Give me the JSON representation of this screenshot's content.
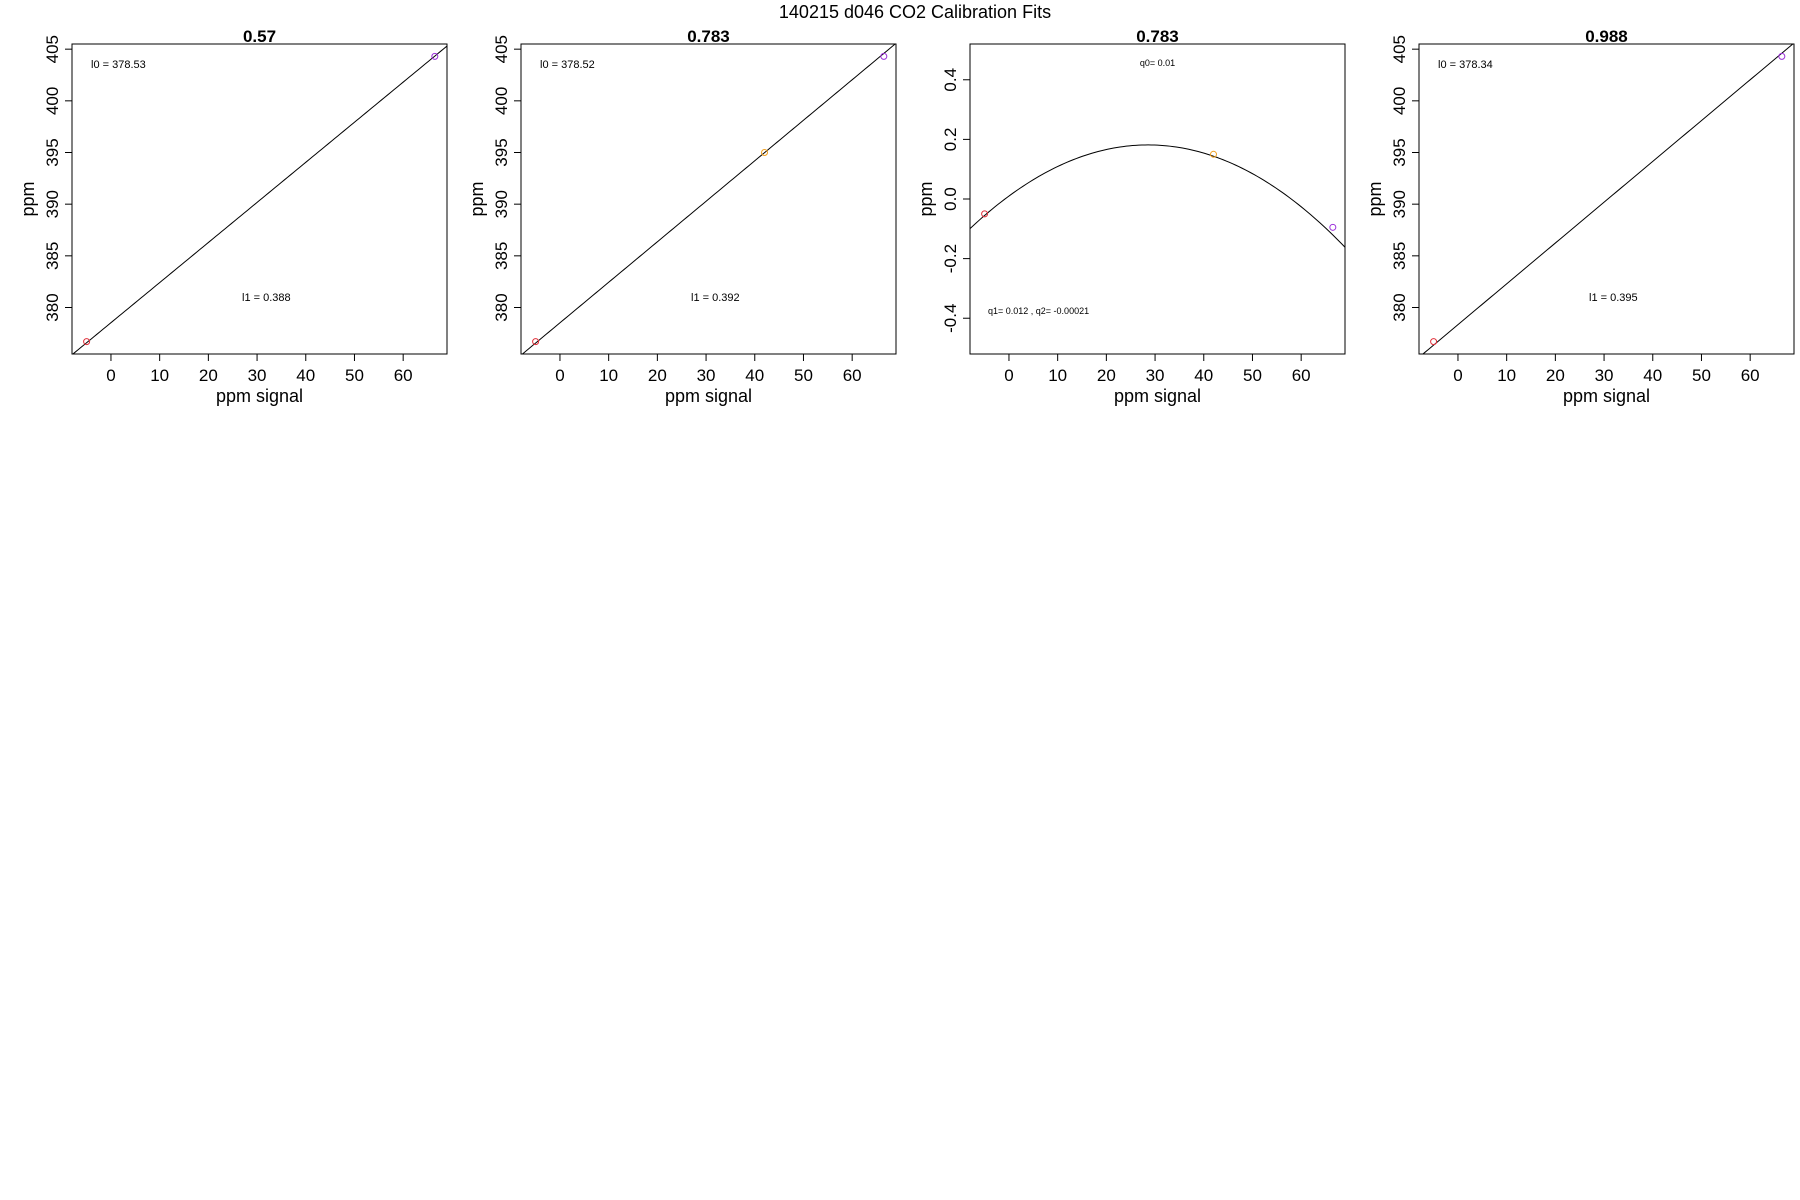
{
  "figure_title": "140215   d046   CO2 Calibration Fits",
  "chart_data": [
    {
      "type": "line",
      "title": "0.57",
      "xlabel": "ppm signal",
      "ylabel": "ppm",
      "xlim": [
        -8,
        69
      ],
      "ylim": [
        375.5,
        405.5
      ],
      "xticks": [
        0,
        10,
        20,
        30,
        40,
        50,
        60
      ],
      "yticks": [
        380,
        385,
        390,
        395,
        400,
        405
      ],
      "fit": {
        "kind": "linear",
        "intercept": 378.53,
        "slope": 0.388
      },
      "annotations": [
        {
          "text": "l0 =  378.53",
          "pos": "top-left"
        },
        {
          "text": "l1 =  0.388",
          "pos": "bottom-center"
        }
      ],
      "points": [
        {
          "x": -5,
          "y": 376.7,
          "color": "#e0303a"
        },
        {
          "x": 66.5,
          "y": 404.3,
          "color": "#9b30d9"
        }
      ]
    },
    {
      "type": "line",
      "title": "0.783",
      "xlabel": "ppm signal",
      "ylabel": "ppm",
      "xlim": [
        -8,
        69
      ],
      "ylim": [
        375.5,
        405.5
      ],
      "xticks": [
        0,
        10,
        20,
        30,
        40,
        50,
        60
      ],
      "yticks": [
        380,
        385,
        390,
        395,
        400,
        405
      ],
      "fit": {
        "kind": "linear",
        "intercept": 378.52,
        "slope": 0.392
      },
      "annotations": [
        {
          "text": "l0 =  378.52",
          "pos": "top-left"
        },
        {
          "text": "l1 =  0.392",
          "pos": "bottom-center"
        }
      ],
      "points": [
        {
          "x": -5,
          "y": 376.7,
          "color": "#e0303a"
        },
        {
          "x": 42,
          "y": 395,
          "color": "#f0a020"
        },
        {
          "x": 66.5,
          "y": 404.3,
          "color": "#9b30d9"
        }
      ]
    },
    {
      "type": "line",
      "title": "0.783",
      "xlabel": "ppm signal",
      "ylabel": "ppm",
      "xlim": [
        -8,
        69
      ],
      "ylim": [
        -0.52,
        0.52
      ],
      "xticks": [
        0,
        10,
        20,
        30,
        40,
        50,
        60
      ],
      "yticks": [
        -0.4,
        -0.2,
        0.0,
        0.2,
        0.4
      ],
      "fit": {
        "kind": "quadratic",
        "q0": 0.01,
        "q1": 0.012,
        "q2": -0.00021
      },
      "annotations": [
        {
          "text": "q0= 0.01",
          "pos": "top-center"
        },
        {
          "text": "q1= 0.012 , q2= -0.00021",
          "pos": "bottom-left"
        }
      ],
      "points": [
        {
          "x": -5,
          "y": -0.05,
          "color": "#e0303a"
        },
        {
          "x": 42,
          "y": 0.15,
          "color": "#f0a020"
        },
        {
          "x": 66.5,
          "y": -0.095,
          "color": "#9b30d9"
        }
      ]
    },
    {
      "type": "line",
      "title": "0.988",
      "xlabel": "ppm signal",
      "ylabel": "ppm",
      "xlim": [
        -8,
        69
      ],
      "ylim": [
        375.5,
        405.5
      ],
      "xticks": [
        0,
        10,
        20,
        30,
        40,
        50,
        60
      ],
      "yticks": [
        380,
        385,
        390,
        395,
        400,
        405
      ],
      "fit": {
        "kind": "linear",
        "intercept": 378.34,
        "slope": 0.395
      },
      "annotations": [
        {
          "text": "l0 =  378.34",
          "pos": "top-left"
        },
        {
          "text": "l1 =  0.395",
          "pos": "bottom-center"
        }
      ],
      "points": [
        {
          "x": -5,
          "y": 376.7,
          "color": "#e0303a"
        },
        {
          "x": 66.5,
          "y": 404.3,
          "color": "#9b30d9"
        }
      ]
    }
  ]
}
